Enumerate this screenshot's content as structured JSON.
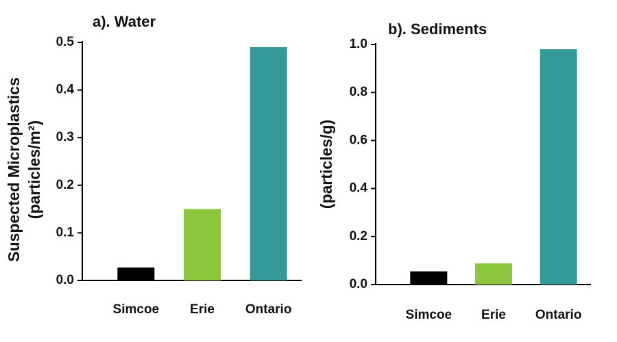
{
  "chart_data": [
    {
      "type": "bar",
      "title": "a). Water",
      "y_label": [
        "Suspected Microplastics",
        "(particles/m²)"
      ],
      "categories": [
        "Simcoe",
        "Erie",
        "Ontario"
      ],
      "values": [
        0.027,
        0.15,
        0.49
      ],
      "colors": [
        "#000000",
        "#8dc63f",
        "#339999"
      ],
      "ylim": [
        0,
        0.5
      ],
      "yticks": [
        {
          "value": 0,
          "label": "0.0"
        },
        0.1,
        0.2,
        0.3,
        0.4,
        0.5
      ]
    },
    {
      "type": "bar",
      "title": "b). Sediments",
      "y_label": [
        "(particles/g)"
      ],
      "categories": [
        "Simcoe",
        "Erie",
        "Ontario"
      ],
      "values": [
        0.055,
        0.088,
        0.98
      ],
      "colors": [
        "#000000",
        "#8dc63f",
        "#339999"
      ],
      "ylim": [
        0,
        1.0
      ],
      "yticks": [
        {
          "value": 0,
          "label": "0.0"
        },
        0.2,
        0.4,
        0.6,
        0.8,
        {
          "value": 1.0,
          "label": "1.0"
        }
      ]
    }
  ]
}
